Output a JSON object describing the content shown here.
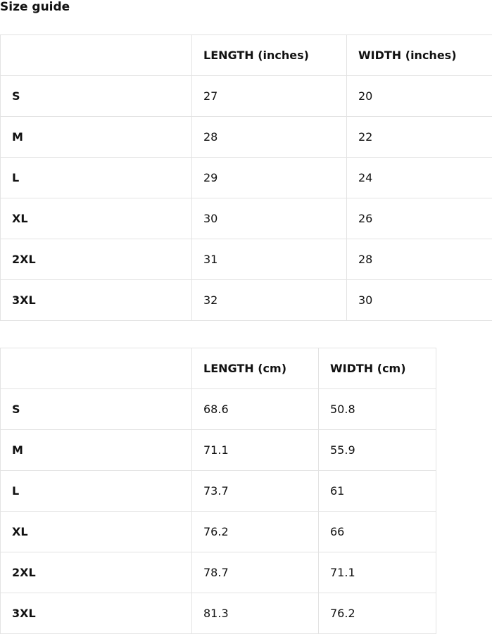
{
  "title": "Size guide",
  "tables": [
    {
      "headers": [
        "",
        "LENGTH (inches)",
        "WIDTH (inches)"
      ],
      "rows": [
        [
          "S",
          "27",
          "20"
        ],
        [
          "M",
          "28",
          "22"
        ],
        [
          "L",
          "29",
          "24"
        ],
        [
          "XL",
          "30",
          "26"
        ],
        [
          "2XL",
          "31",
          "28"
        ],
        [
          "3XL",
          "32",
          "30"
        ]
      ]
    },
    {
      "headers": [
        "",
        "LENGTH (cm)",
        "WIDTH (cm)"
      ],
      "rows": [
        [
          "S",
          "68.6",
          "50.8"
        ],
        [
          "M",
          "71.1",
          "55.9"
        ],
        [
          "L",
          "73.7",
          "61"
        ],
        [
          "XL",
          "76.2",
          "66"
        ],
        [
          "2XL",
          "78.7",
          "71.1"
        ],
        [
          "3XL",
          "81.3",
          "76.2"
        ]
      ]
    }
  ]
}
